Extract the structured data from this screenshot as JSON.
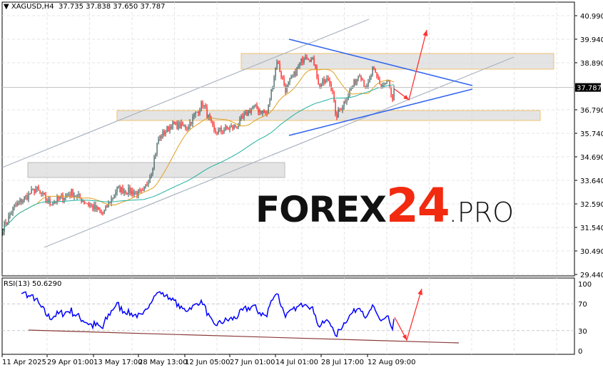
{
  "header": {
    "symbol": "XAGUSD,H4",
    "ohlc": "37.735 37.838 37.650 37.787",
    "menu_icon": "triangle-down-icon"
  },
  "price_axis": {
    "labels": [
      "40.990",
      "39.940",
      "38.890",
      "37.787",
      "36.790",
      "35.740",
      "34.690",
      "33.640",
      "32.590",
      "31.540",
      "30.490",
      "29.440"
    ],
    "current": "37.787"
  },
  "rsi": {
    "label": "RSI(13) 50.6290",
    "levels": [
      "100",
      "70",
      "30",
      "0"
    ]
  },
  "time_axis": [
    "11 Apr 2025",
    "29 Apr 01:00",
    "13 May 17:00",
    "28 May 13:00",
    "12 Jun 05:00",
    "27 Jun 01:00",
    "14 Jul 01:00",
    "28 Jul 17:00",
    "12 Aug 09:00"
  ],
  "logo": {
    "part1": "FOREX",
    "part2": "24",
    "part3": ".PRO"
  },
  "colors": {
    "up_candle": "#2f4f4f",
    "down_candle": "#ff0000",
    "ma_fast": "#e0a020",
    "ma_slow": "#20b0a0",
    "rsi_line": "#0000ff",
    "triangle": "#3366ee",
    "arrow": "#ff3030",
    "zone_border": "#f0c070"
  },
  "chart_data": {
    "type": "candlestick",
    "symbol": "XAGUSD",
    "timeframe": "H4",
    "ylim": [
      29.44,
      40.99
    ],
    "approx_close_path": [
      [
        0,
        31.51
      ],
      [
        8,
        32.47
      ],
      [
        23,
        33.26
      ],
      [
        33,
        32.62
      ],
      [
        48,
        33.1
      ],
      [
        70,
        32.14
      ],
      [
        80,
        33.26
      ],
      [
        98,
        33.04
      ],
      [
        104,
        34.05
      ],
      [
        109,
        35.49
      ],
      [
        118,
        36.13
      ],
      [
        129,
        36.03
      ],
      [
        140,
        37.08
      ],
      [
        148,
        35.8
      ],
      [
        163,
        36.03
      ],
      [
        175,
        36.92
      ],
      [
        185,
        36.6
      ],
      [
        192,
        38.99
      ],
      [
        198,
        37.71
      ],
      [
        204,
        38.35
      ],
      [
        212,
        39.3
      ],
      [
        219,
        38.83
      ],
      [
        221,
        37.87
      ],
      [
        228,
        38.13
      ],
      [
        231,
        37.71
      ],
      [
        233,
        36.44
      ],
      [
        237,
        36.92
      ],
      [
        244,
        37.71
      ],
      [
        250,
        38.45
      ],
      [
        255,
        37.71
      ],
      [
        259,
        38.57
      ],
      [
        265,
        37.87
      ],
      [
        270,
        38.03
      ],
      [
        273,
        37.08
      ],
      [
        274,
        37.79
      ]
    ],
    "last": {
      "open": 37.735,
      "high": 37.838,
      "low": 37.65,
      "close": 37.787
    },
    "rsi_period": 13,
    "rsi_last": 50.629
  }
}
